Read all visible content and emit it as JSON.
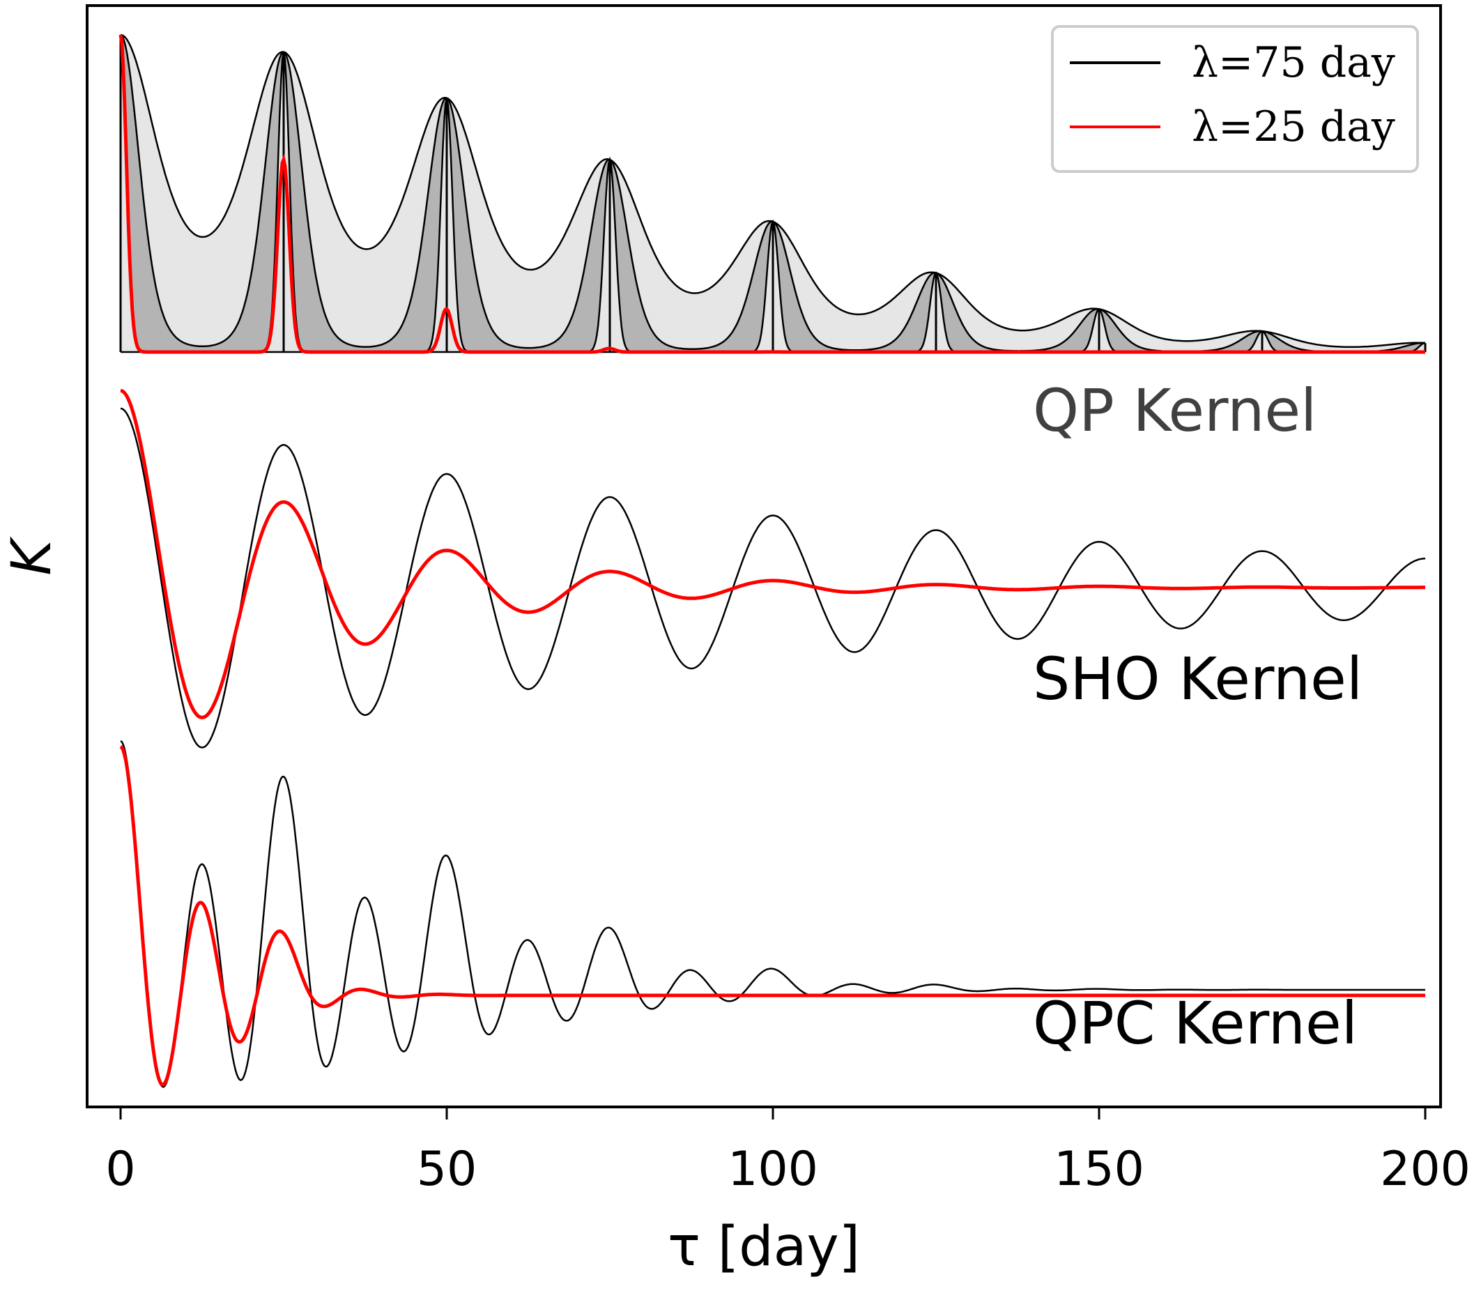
{
  "chart_data": {
    "type": "line",
    "xlabel": "τ [day]",
    "ylabel": "K",
    "xlim": [
      0,
      200
    ],
    "x_ticks": [
      0,
      50,
      100,
      150,
      200
    ],
    "grid": false,
    "legend_position": "top-right",
    "colors": {
      "lambda75": "#000000",
      "lambda25": "#ff0000",
      "fill_light": "#e6e6e6",
      "fill_dark": "#b4b4b4",
      "qp_label": "#404040"
    },
    "legend": [
      {
        "key": "lambda75",
        "label": "λ=75 day"
      },
      {
        "key": "lambda25",
        "label": "λ=25 day"
      }
    ],
    "panels": [
      {
        "name": "QP Kernel",
        "label": "QP Kernel",
        "period": 25,
        "peaks_lambda75": [
          {
            "x": 0,
            "y": 1.0
          },
          {
            "x": 25,
            "y": 0.944
          },
          {
            "x": 50,
            "y": 0.8
          },
          {
            "x": 75,
            "y": 0.607
          },
          {
            "x": 100,
            "y": 0.411
          },
          {
            "x": 125,
            "y": 0.249
          },
          {
            "x": 150,
            "y": 0.135
          },
          {
            "x": 175,
            "y": 0.066
          },
          {
            "x": 200,
            "y": 0.028
          }
        ],
        "peaks_lambda25": [
          {
            "x": 0,
            "y": 1.0
          },
          {
            "x": 25,
            "y": 0.607
          },
          {
            "x": 50,
            "y": 0.135
          },
          {
            "x": 75,
            "y": 0.011
          }
        ]
      },
      {
        "name": "SHO Kernel",
        "label": "SHO Kernel",
        "period": 25,
        "extrema_lambda75": [
          {
            "x": 0,
            "y": 1.0
          },
          {
            "x": 12.5,
            "y": -0.91
          },
          {
            "x": 25,
            "y": 0.8
          },
          {
            "x": 37.5,
            "y": -0.7
          },
          {
            "x": 50,
            "y": 0.6
          },
          {
            "x": 75,
            "y": 0.45
          },
          {
            "x": 100,
            "y": 0.33
          },
          {
            "x": 125,
            "y": 0.25
          },
          {
            "x": 150,
            "y": 0.18
          },
          {
            "x": 175,
            "y": 0.13
          },
          {
            "x": 200,
            "y": 0.1
          }
        ],
        "extrema_lambda25": [
          {
            "x": 0,
            "y": 1.1
          },
          {
            "x": 12.5,
            "y": -0.83
          },
          {
            "x": 25,
            "y": 0.5
          },
          {
            "x": 37.5,
            "y": -0.3
          },
          {
            "x": 50,
            "y": 0.18
          },
          {
            "x": 75,
            "y": 0.06
          },
          {
            "x": 100,
            "y": 0.01
          }
        ]
      },
      {
        "name": "QPC Kernel",
        "label": "QPC Kernel",
        "period": 25,
        "extrema_lambda75": [
          {
            "x": 0,
            "y": 1.0
          },
          {
            "x": 6.25,
            "y": -0.9
          },
          {
            "x": 12.5,
            "y": 0.27
          },
          {
            "x": 25,
            "y": 0.82
          },
          {
            "x": 50,
            "y": 0.42
          },
          {
            "x": 75,
            "y": 0.12
          },
          {
            "x": 100,
            "y": 0.03
          }
        ],
        "extrema_lambda25": [
          {
            "x": 0,
            "y": 1.0
          },
          {
            "x": 6.25,
            "y": -0.9
          },
          {
            "x": 12.5,
            "y": 0.17
          },
          {
            "x": 18.75,
            "y": -0.09
          },
          {
            "x": 25,
            "y": 0.1
          },
          {
            "x": 50,
            "y": 0.0
          }
        ]
      }
    ]
  }
}
